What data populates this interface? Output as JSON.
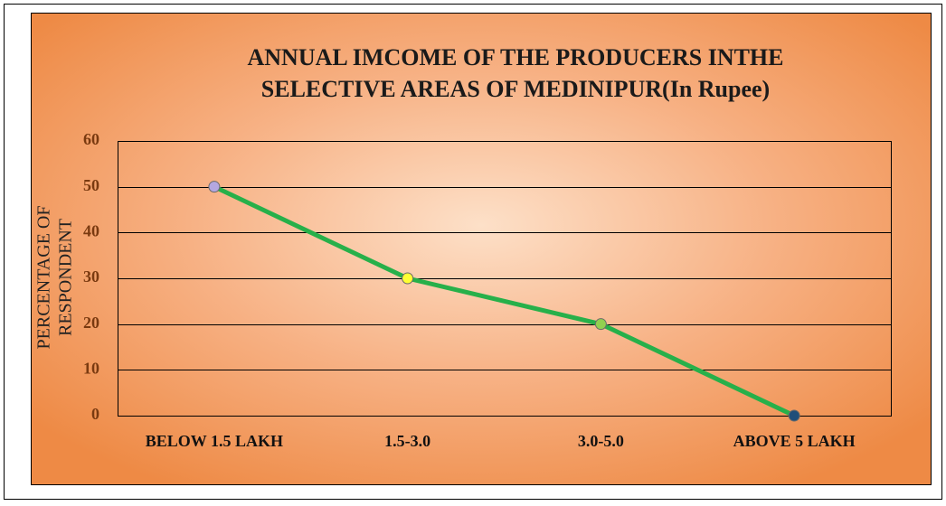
{
  "chart_data": {
    "type": "line",
    "title": [
      "ANNUAL IMCOME OF THE PRODUCERS INTHE",
      "SELECTIVE AREAS OF MEDINIPUR(In Rupee)"
    ],
    "y_label": [
      "PERCENTAGE OF",
      "RESPONDENT"
    ],
    "categories": [
      "BELOW 1.5 LAKH",
      "1.5-3.0",
      "3.0-5.0",
      "ABOVE 5 LAKH"
    ],
    "series": [
      {
        "color": "#27b04a",
        "values": [
          50,
          30,
          20,
          0
        ],
        "marker_colors": [
          "#b4a7e0",
          "#ffff33",
          "#92d050",
          "#1f4e79"
        ]
      }
    ],
    "ylim": [
      0,
      60
    ],
    "yticks": [
      0,
      10,
      20,
      30,
      40,
      50,
      60
    ],
    "grid": true
  }
}
